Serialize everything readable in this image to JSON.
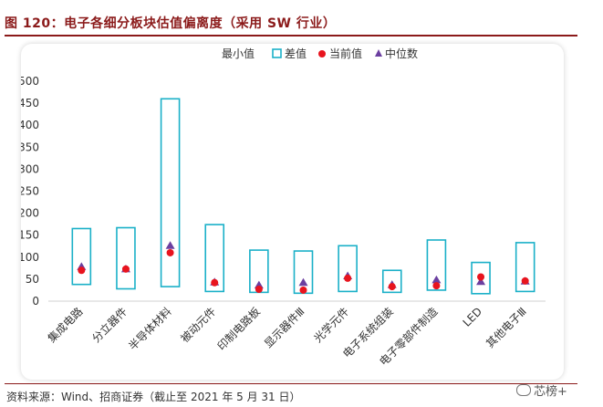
{
  "figure": {
    "title": "图 120：电子各细分板块估值偏离度（采用 SW 行业）",
    "source": "资料来源：Wind、招商证券（截止至 2021 年 5 月 31 日）",
    "watermark": "芯榜+"
  },
  "colors": {
    "box": "#1ab0c8",
    "current": "#e8141e",
    "median": "#6b3fa0",
    "title": "#8b1a1a"
  },
  "chart_data": {
    "type": "boxplot",
    "title": "",
    "xlabel": "",
    "ylabel": "",
    "ylim": [
      0,
      500
    ],
    "yticks": [
      0,
      50,
      100,
      150,
      200,
      250,
      300,
      350,
      400,
      450,
      500
    ],
    "legend": {
      "placement": "top",
      "labels": [
        "最小值",
        "差值",
        "当前值",
        "中位数"
      ]
    },
    "categories": [
      "集成电路",
      "分立器件",
      "半导体材料",
      "被动元件",
      "印制电路板",
      "显示器件Ⅲ",
      "光学元件",
      "电子系统组装",
      "电子零部件制造",
      "LED",
      "其他电子Ⅲ"
    ],
    "series": [
      {
        "name": "最小值",
        "values": [
          38,
          28,
          33,
          22,
          20,
          18,
          22,
          20,
          25,
          17,
          22
        ]
      },
      {
        "name": "差值",
        "values": [
          127,
          139,
          427,
          152,
          96,
          96,
          104,
          50,
          114,
          71,
          111
        ]
      },
      {
        "name": "当前值",
        "values": [
          70,
          73,
          110,
          42,
          27,
          25,
          52,
          33,
          35,
          55,
          46
        ]
      },
      {
        "name": "中位数",
        "values": [
          78,
          73,
          126,
          43,
          36,
          42,
          57,
          37,
          48,
          44,
          45
        ]
      }
    ]
  }
}
